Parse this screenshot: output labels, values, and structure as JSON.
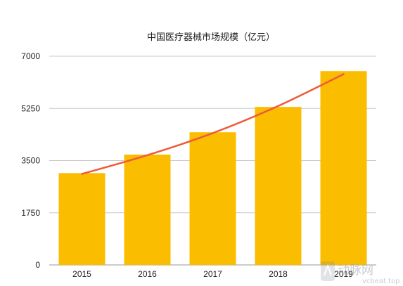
{
  "chart_data": {
    "type": "bar",
    "title": "中国医疗器械市场规模（亿元）",
    "categories": [
      "2015",
      "2016",
      "2017",
      "2018",
      "2019"
    ],
    "values": [
      3080,
      3700,
      4450,
      5300,
      6500
    ],
    "trendline": {
      "type": "exponential",
      "color": "#ef5a3a",
      "values": [
        3050,
        3680,
        4420,
        5330,
        6400
      ]
    },
    "ylim": [
      0,
      7000
    ],
    "yticks": [
      "0",
      "1750",
      "3500",
      "5250",
      "7000"
    ],
    "bar_color": "#fbbd00",
    "grid": true,
    "legend": "none",
    "xlabel": "",
    "ylabel": ""
  },
  "watermark": {
    "brand": "动脉网",
    "site": "vcbeat.top",
    "color": "#9aa3b0"
  }
}
